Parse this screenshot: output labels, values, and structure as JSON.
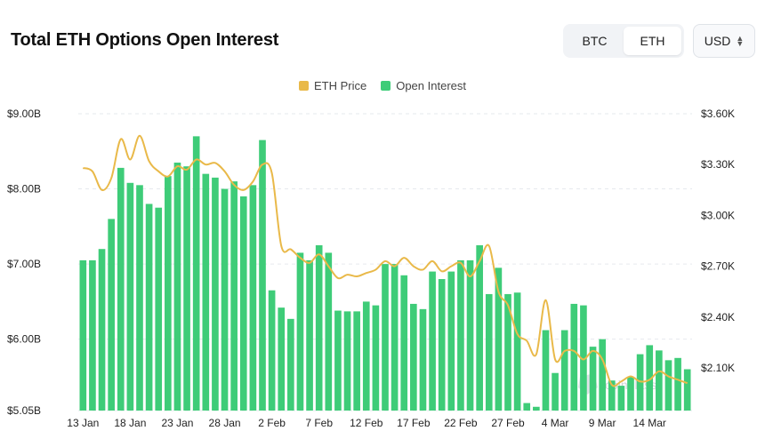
{
  "header": {
    "title": "Total ETH Options Open Interest"
  },
  "toggle": {
    "options": [
      "BTC",
      "ETH"
    ],
    "selected": "ETH"
  },
  "currency": {
    "value": "USD"
  },
  "colors": {
    "price": "#e9b949",
    "open_interest": "#3ecc78",
    "grid": "#e6e9ee"
  },
  "watermark": {
    "icon": "coinglass-logo-icon"
  },
  "chart_data": {
    "type": "bar",
    "legend": [
      "ETH Price",
      "Open Interest"
    ],
    "legend_position": "top-center",
    "grid": true,
    "x_ticks": [
      "13 Jan",
      "18 Jan",
      "23 Jan",
      "28 Jan",
      "2 Feb",
      "7 Feb",
      "12 Feb",
      "17 Feb",
      "22 Feb",
      "27 Feb",
      "4 Mar",
      "9 Mar",
      "14 Mar"
    ],
    "y_left": {
      "ticks": [
        "$5.05B",
        "$6.00B",
        "$7.00B",
        "$8.00B",
        "$9.00B"
      ],
      "range": [
        5.05,
        9.2
      ]
    },
    "y_right": {
      "ticks": [
        "$2.10K",
        "$2.40K",
        "$2.70K",
        "$3.00K",
        "$3.30K",
        "$3.60K"
      ],
      "range": [
        1.95,
        3.6
      ]
    },
    "dates_start": "13 Jan",
    "series": [
      {
        "name": "Open Interest",
        "axis": "left",
        "unit": "B USD",
        "values": [
          7.05,
          7.05,
          7.2,
          7.6,
          8.28,
          8.08,
          8.05,
          7.8,
          7.75,
          8.17,
          8.35,
          8.3,
          8.7,
          8.2,
          8.15,
          8.0,
          8.1,
          7.9,
          8.05,
          8.65,
          6.65,
          6.42,
          6.27,
          7.15,
          7.05,
          7.25,
          7.15,
          6.38,
          6.37,
          6.37,
          6.5,
          6.45,
          7.0,
          7.0,
          6.85,
          6.47,
          6.4,
          6.9,
          6.8,
          6.9,
          7.05,
          7.05,
          7.25,
          6.6,
          6.95,
          6.6,
          6.62,
          5.15,
          5.1,
          6.12,
          5.55,
          6.12,
          6.47,
          6.45,
          5.9,
          6.0,
          5.45,
          5.38,
          5.5,
          5.8,
          5.92,
          5.85,
          5.72,
          5.75,
          5.6
        ]
      },
      {
        "name": "ETH Price",
        "axis": "right",
        "unit": "K USD",
        "values": [
          3.28,
          3.26,
          3.15,
          3.22,
          3.45,
          3.33,
          3.47,
          3.32,
          3.26,
          3.23,
          3.29,
          3.27,
          3.33,
          3.3,
          3.31,
          3.26,
          3.18,
          3.15,
          3.2,
          3.3,
          3.25,
          2.82,
          2.8,
          2.75,
          2.72,
          2.77,
          2.7,
          2.63,
          2.65,
          2.64,
          2.66,
          2.68,
          2.73,
          2.7,
          2.75,
          2.7,
          2.68,
          2.73,
          2.67,
          2.7,
          2.72,
          2.64,
          2.73,
          2.82,
          2.55,
          2.47,
          2.3,
          2.26,
          2.18,
          2.5,
          2.15,
          2.2,
          2.2,
          2.15,
          2.2,
          2.15,
          2.0,
          2.02,
          2.05,
          2.02,
          2.03,
          2.08,
          2.05,
          2.03,
          2.01
        ]
      }
    ]
  }
}
